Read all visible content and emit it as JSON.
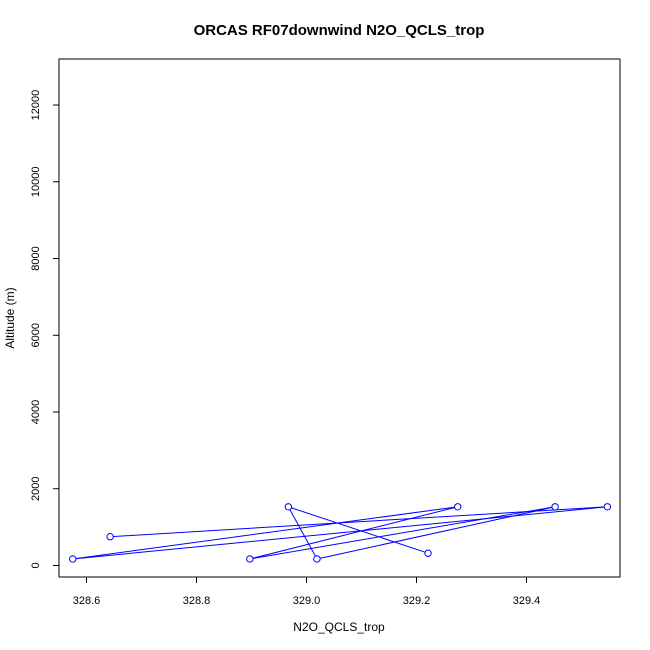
{
  "chart_data": {
    "type": "line",
    "title": "ORCAS RF07downwind N2O_QCLS_trop",
    "xlabel": "N2O_QCLS_trop",
    "ylabel": "Altitude (m)",
    "xlim": [
      328.55,
      329.57
    ],
    "ylim": [
      -300,
      13200
    ],
    "xticks": [
      328.6,
      328.8,
      329.0,
      329.2,
      329.4
    ],
    "xtick_labels": [
      "328.6",
      "328.8",
      "329.0",
      "329.2",
      "329.4"
    ],
    "yticks": [
      0,
      2000,
      4000,
      6000,
      8000,
      10000,
      12000
    ],
    "ytick_labels": [
      "0",
      "2000",
      "4000",
      "6000",
      "8000",
      "10000",
      "12000"
    ],
    "grid": false,
    "legend": "none",
    "series": [
      {
        "color": "#0000ff",
        "marker": "open-circle",
        "points": [
          {
            "x": 328.643,
            "y": 750
          },
          {
            "x": 329.547,
            "y": 1530
          },
          {
            "x": 328.575,
            "y": 170
          },
          {
            "x": 329.275,
            "y": 1530
          },
          {
            "x": 328.897,
            "y": 170
          },
          {
            "x": 329.452,
            "y": 1530
          },
          {
            "x": 329.019,
            "y": 170
          },
          {
            "x": 328.967,
            "y": 1530
          },
          {
            "x": 329.221,
            "y": 320
          }
        ]
      }
    ]
  }
}
